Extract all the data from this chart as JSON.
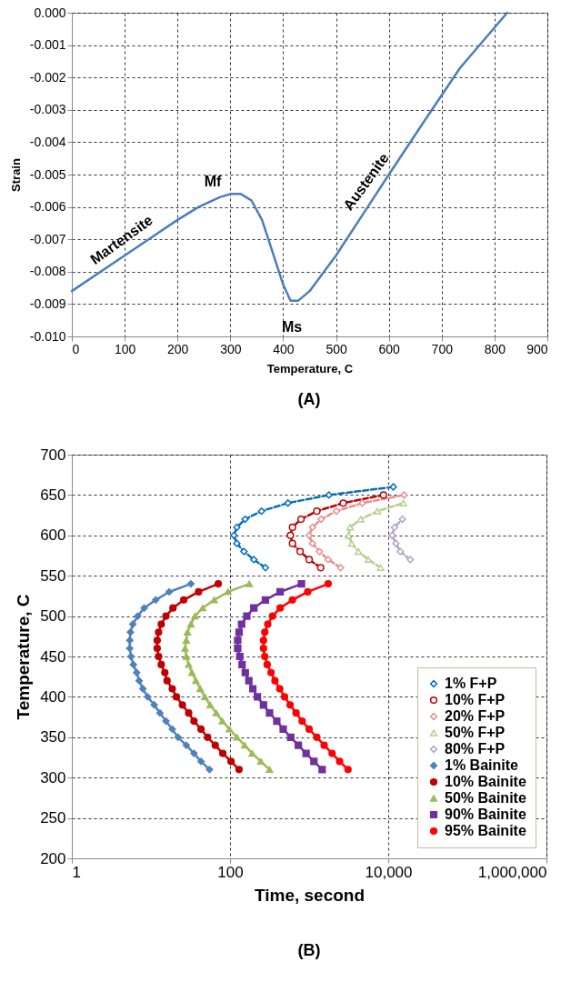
{
  "chart_data": [
    {
      "type": "line",
      "xlabel": "Temperature, C",
      "ylabel": "Strain",
      "xlim": [
        0,
        900
      ],
      "ylim": [
        -0.01,
        0
      ],
      "xticks": [
        0,
        100,
        200,
        300,
        400,
        500,
        600,
        700,
        800,
        900
      ],
      "yticks": [
        {
          "value": 0,
          "label": "0.000"
        },
        {
          "value": -0.001,
          "label": "-0.001"
        },
        {
          "value": -0.002,
          "label": "-0.002"
        },
        {
          "value": -0.003,
          "label": "-0.003"
        },
        {
          "value": -0.004,
          "label": "-0.004"
        },
        {
          "value": -0.005,
          "label": "-0.005"
        },
        {
          "value": -0.006,
          "label": "-0.006"
        },
        {
          "value": -0.007,
          "label": "-0.007"
        },
        {
          "value": -0.008,
          "label": "-0.008"
        },
        {
          "value": -0.009,
          "label": "-0.009"
        },
        {
          "value": -0.01,
          "label": "-0.010"
        }
      ],
      "grid": true,
      "line_style": "solid",
      "marker": "none",
      "series": [
        {
          "color": "#4a7ebb",
          "x": [
            0,
            100,
            200,
            240,
            280,
            300,
            320,
            340,
            360,
            380,
            400,
            414,
            428,
            450,
            500,
            560,
            600,
            665,
            735,
            824
          ],
          "values": [
            -0.0086,
            -0.0075,
            -0.0064,
            -0.006,
            -0.0057,
            -0.0056,
            -0.0056,
            -0.0058,
            -0.0064,
            -0.0074,
            -0.0084,
            -0.0089,
            -0.0089,
            -0.0086,
            -0.0075,
            -0.006,
            -0.005,
            -0.0034,
            -0.0017,
            0.0
          ]
        }
      ],
      "annotations": [
        "Martensite",
        "Mf",
        "Ms",
        "Austenite",
        "(A)"
      ]
    },
    {
      "type": "line",
      "xlabel": "Time, second",
      "ylabel": "Temperature, C",
      "log": "x",
      "xlim": [
        1,
        1000000
      ],
      "xticks": [
        {
          "value": 1,
          "label": "1"
        },
        {
          "value": 100,
          "label": "100"
        },
        {
          "value": 10000,
          "label": "10,000"
        },
        {
          "value": 1000000,
          "label": "1,000,000"
        }
      ],
      "ylim": [
        200,
        700
      ],
      "yticks": [
        200,
        250,
        300,
        350,
        400,
        450,
        500,
        550,
        600,
        650,
        700
      ],
      "grid": true,
      "legend": "bottom right",
      "series": [
        {
          "name": "1% F+P",
          "color": "#0070c0",
          "marker": "diamond",
          "line_style": "dashed",
          "x": [
            280,
            200,
            150,
            122,
            112,
            122,
            155,
            250,
            540,
            1780,
            11600
          ],
          "values": [
            560,
            570,
            580,
            590,
            600,
            610,
            620,
            630,
            640,
            650,
            660
          ]
        },
        {
          "name": "10% F+P",
          "color": "#c00000",
          "marker": "circle",
          "line_style": "dashed",
          "x": [
            1400,
            1000,
            770,
            615,
            580,
            615,
            790,
            1250,
            2700,
            8700
          ],
          "values": [
            560,
            570,
            580,
            590,
            600,
            610,
            620,
            630,
            640,
            650
          ]
        },
        {
          "name": "20% F+P",
          "color": "#e6908e",
          "marker": "diamond",
          "line_style": "dashed",
          "x": [
            2500,
            1740,
            1350,
            1100,
            1000,
            1100,
            1420,
            2220,
            4700,
            15900
          ],
          "values": [
            560,
            570,
            580,
            590,
            600,
            610,
            620,
            630,
            640,
            650
          ]
        },
        {
          "name": "50% F+P",
          "color": "#b5cf8c",
          "marker": "triangle",
          "line_style": "dashed",
          "x": [
            8000,
            5600,
            4200,
            3450,
            3150,
            3300,
            4500,
            7300,
            15500
          ],
          "values": [
            560,
            570,
            580,
            590,
            600,
            610,
            620,
            630,
            640
          ]
        },
        {
          "name": "80% F+P",
          "color": "#b3a2c7",
          "marker": "diamond",
          "line_style": "dashed",
          "x": [
            19000,
            14200,
            12500,
            11200,
            12000,
            15100
          ],
          "values": [
            570,
            580,
            590,
            600,
            610,
            620
          ]
        },
        {
          "name": "1% Bainite",
          "color": "#4f81bd",
          "marker": "diamond",
          "line_style": "solid",
          "x": [
            32,
            17,
            11.5,
            8.2,
            6.8,
            5.9,
            5.5,
            5.4,
            5.4,
            5.6,
            6,
            6.6,
            7.1,
            7.9,
            9.1,
            11,
            13,
            15.5,
            18.6,
            22,
            28,
            35,
            43,
            55
          ],
          "values": [
            540,
            530,
            520,
            510,
            500,
            490,
            480,
            470,
            460,
            450,
            440,
            430,
            420,
            410,
            400,
            390,
            380,
            370,
            360,
            350,
            340,
            330,
            320,
            310
          ]
        },
        {
          "name": "10% Bainite",
          "color": "#c00000",
          "marker": "circle",
          "line_style": "solid",
          "x": [
            71,
            40,
            26,
            19,
            15.5,
            13.5,
            12.5,
            12,
            12,
            12.5,
            13.5,
            15,
            16,
            18.6,
            21,
            25,
            30,
            35,
            43,
            52,
            65,
            81,
            103,
            130
          ],
          "values": [
            540,
            530,
            520,
            510,
            500,
            490,
            480,
            470,
            460,
            450,
            440,
            430,
            420,
            410,
            400,
            390,
            380,
            370,
            360,
            350,
            340,
            330,
            320,
            310
          ]
        },
        {
          "name": "50% Bainite",
          "color": "#9bbb59",
          "marker": "triangle",
          "line_style": "solid",
          "x": [
            175,
            94,
            63,
            45,
            36,
            32,
            29,
            28,
            27,
            28,
            30,
            33,
            37,
            42,
            48,
            56,
            67,
            80,
            98,
            122,
            153,
            191,
            245,
            316
          ],
          "values": [
            540,
            530,
            520,
            510,
            500,
            490,
            480,
            470,
            460,
            450,
            440,
            430,
            420,
            410,
            400,
            390,
            380,
            370,
            360,
            350,
            340,
            330,
            320,
            310
          ]
        },
        {
          "name": "90% Bainite",
          "color": "#7030a0",
          "marker": "square",
          "line_style": "solid",
          "x": [
            800,
            430,
            280,
            200,
            163,
            140,
            130,
            125,
            125,
            133,
            142,
            156,
            173,
            194,
            222,
            265,
            316,
            390,
            470,
            585,
            730,
            915,
            1150,
            1460
          ],
          "values": [
            540,
            530,
            520,
            510,
            500,
            490,
            480,
            470,
            460,
            450,
            440,
            430,
            420,
            410,
            400,
            390,
            380,
            370,
            360,
            350,
            340,
            330,
            320,
            310
          ]
        },
        {
          "name": "95% Bainite",
          "color": "#ff0000",
          "marker": "circle",
          "line_style": "solid",
          "x": [
            1740,
            960,
            615,
            430,
            345,
            300,
            275,
            265,
            265,
            275,
            295,
            330,
            370,
            425,
            490,
            575,
            685,
            815,
            1000,
            1250,
            1550,
            1950,
            2430,
            3100
          ],
          "values": [
            540,
            530,
            520,
            510,
            500,
            490,
            480,
            470,
            460,
            450,
            440,
            430,
            420,
            410,
            400,
            390,
            380,
            370,
            360,
            350,
            340,
            330,
            320,
            310
          ]
        }
      ],
      "annotations": [
        "(B)"
      ]
    }
  ]
}
